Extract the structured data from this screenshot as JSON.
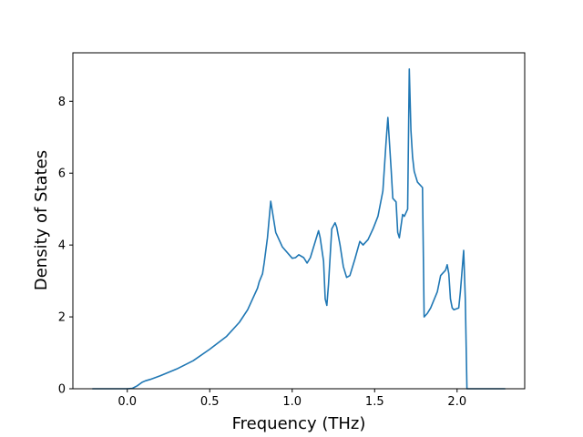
{
  "chart_data": {
    "type": "line",
    "title": "",
    "xlabel": "Frequency (THz)",
    "ylabel": "Density of States",
    "xlim": [
      -0.33,
      2.41
    ],
    "ylim": [
      0,
      9.35
    ],
    "xticks": [
      0.0,
      0.5,
      1.0,
      1.5,
      2.0
    ],
    "xtick_labels": [
      "0.0",
      "0.5",
      "1.0",
      "1.5",
      "2.0"
    ],
    "yticks": [
      0,
      2,
      4,
      6,
      8
    ],
    "ytick_labels": [
      "0",
      "2",
      "4",
      "6",
      "8"
    ],
    "grid": false,
    "legend": null,
    "line_color": "#1f77b4",
    "series": [
      {
        "x": [
          -0.21,
          -0.1,
          0.0,
          0.03,
          0.06,
          0.09,
          0.11,
          0.14,
          0.2,
          0.3,
          0.4,
          0.5,
          0.6,
          0.68,
          0.73,
          0.76,
          0.79,
          0.8,
          0.82,
          0.83,
          0.85,
          0.87,
          0.9,
          0.94,
          1.0,
          1.02,
          1.04,
          1.07,
          1.09,
          1.11,
          1.13,
          1.16,
          1.17,
          1.19,
          1.2,
          1.21,
          1.22,
          1.24,
          1.26,
          1.27,
          1.29,
          1.31,
          1.33,
          1.35,
          1.38,
          1.41,
          1.43,
          1.46,
          1.49,
          1.52,
          1.55,
          1.57,
          1.58,
          1.6,
          1.61,
          1.63,
          1.64,
          1.65,
          1.67,
          1.68,
          1.7,
          1.71,
          1.72,
          1.73,
          1.74,
          1.75,
          1.76,
          1.79,
          1.8,
          1.82,
          1.84,
          1.88,
          1.9,
          1.91,
          1.93,
          1.94,
          1.95,
          1.96,
          1.97,
          1.98,
          2.01,
          2.02,
          2.04,
          2.05,
          2.06,
          2.07,
          2.1,
          2.2,
          2.29
        ],
        "y": [
          0,
          0,
          0,
          0.01,
          0.08,
          0.18,
          0.22,
          0.26,
          0.36,
          0.55,
          0.78,
          1.1,
          1.45,
          1.85,
          2.2,
          2.5,
          2.8,
          2.98,
          3.2,
          3.5,
          4.2,
          5.22,
          4.35,
          3.95,
          3.63,
          3.65,
          3.73,
          3.65,
          3.5,
          3.65,
          3.95,
          4.4,
          4.2,
          3.55,
          2.5,
          2.32,
          2.9,
          4.45,
          4.62,
          4.5,
          4.0,
          3.4,
          3.1,
          3.15,
          3.6,
          4.1,
          4.0,
          4.15,
          4.45,
          4.8,
          5.5,
          6.9,
          7.55,
          6.1,
          5.3,
          5.2,
          4.35,
          4.2,
          4.85,
          4.8,
          5.0,
          8.9,
          7.2,
          6.45,
          6.05,
          5.9,
          5.75,
          5.6,
          2.0,
          2.1,
          2.25,
          2.7,
          3.15,
          3.2,
          3.3,
          3.45,
          3.2,
          2.5,
          2.25,
          2.2,
          2.25,
          2.7,
          3.85,
          2.5,
          0.0,
          0.0,
          0.0,
          0.0,
          0.0
        ]
      }
    ]
  }
}
